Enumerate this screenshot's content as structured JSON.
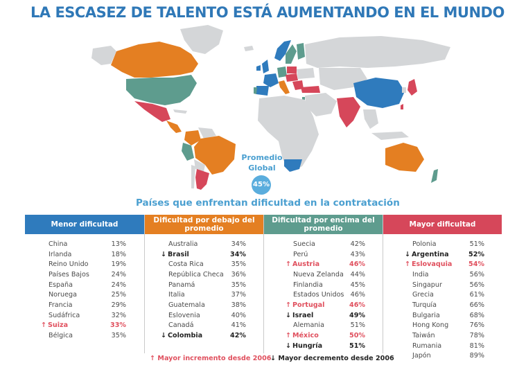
{
  "title": "LA ESCASEZ DE TALENTO ESTÁ AUMENTANDO EN EL MUNDO",
  "promedio": {
    "label_line1": "Promedio",
    "label_line2": "Global",
    "value": "45%"
  },
  "subtitle": "Países que enfrentan dificultad en la contratación",
  "colors": {
    "title": "#2f78b7",
    "menor": "#2f7bbd",
    "debajo": "#e47f22",
    "encima": "#5e9c8e",
    "mayor": "#d6475a",
    "no_data": "#d4d6d8",
    "up_text": "#e0505e"
  },
  "columns": [
    {
      "header": "Menor dificultad",
      "color": "#2f7bbd",
      "rows": [
        {
          "name": "China",
          "pct": "13%",
          "trend": ""
        },
        {
          "name": "Irlanda",
          "pct": "18%",
          "trend": ""
        },
        {
          "name": "Reino Unido",
          "pct": "19%",
          "trend": ""
        },
        {
          "name": "Países Bajos",
          "pct": "24%",
          "trend": ""
        },
        {
          "name": "España",
          "pct": "24%",
          "trend": ""
        },
        {
          "name": "Noruega",
          "pct": "25%",
          "trend": ""
        },
        {
          "name": "Francia",
          "pct": "29%",
          "trend": ""
        },
        {
          "name": "Sudáfrica",
          "pct": "32%",
          "trend": ""
        },
        {
          "name": "Suiza",
          "pct": "33%",
          "trend": "up"
        },
        {
          "name": "Bélgica",
          "pct": "35%",
          "trend": ""
        }
      ]
    },
    {
      "header": "Dificultad por debajo del promedio",
      "color": "#e47f22",
      "rows": [
        {
          "name": "Australia",
          "pct": "34%",
          "trend": ""
        },
        {
          "name": "Brasil",
          "pct": "34%",
          "trend": "down"
        },
        {
          "name": "Costa Rica",
          "pct": "35%",
          "trend": ""
        },
        {
          "name": "República Checa",
          "pct": "36%",
          "trend": ""
        },
        {
          "name": "Panamá",
          "pct": "35%",
          "trend": ""
        },
        {
          "name": "Italia",
          "pct": "37%",
          "trend": ""
        },
        {
          "name": "Guatemala",
          "pct": "38%",
          "trend": ""
        },
        {
          "name": "Eslovenia",
          "pct": "40%",
          "trend": ""
        },
        {
          "name": "Canadá",
          "pct": "41%",
          "trend": ""
        },
        {
          "name": "Colombia",
          "pct": "42%",
          "trend": "down"
        }
      ]
    },
    {
      "header": "Dificultad por encima del promedio",
      "color": "#5e9c8e",
      "rows": [
        {
          "name": "Suecia",
          "pct": "42%",
          "trend": ""
        },
        {
          "name": "Perú",
          "pct": "43%",
          "trend": ""
        },
        {
          "name": "Austria",
          "pct": "46%",
          "trend": "up"
        },
        {
          "name": "Nueva Zelanda",
          "pct": "44%",
          "trend": ""
        },
        {
          "name": "Finlandia",
          "pct": "45%",
          "trend": ""
        },
        {
          "name": "Estados Unidos",
          "pct": "46%",
          "trend": ""
        },
        {
          "name": "Portugal",
          "pct": "46%",
          "trend": "up"
        },
        {
          "name": "Israel",
          "pct": "49%",
          "trend": "down"
        },
        {
          "name": "Alemania",
          "pct": "51%",
          "trend": ""
        },
        {
          "name": "México",
          "pct": "50%",
          "trend": "up"
        },
        {
          "name": "Hungría",
          "pct": "51%",
          "trend": "down"
        }
      ]
    },
    {
      "header": "Mayor dificultad",
      "color": "#d6475a",
      "rows": [
        {
          "name": "Polonia",
          "pct": "51%",
          "trend": ""
        },
        {
          "name": "Argentina",
          "pct": "52%",
          "trend": "down"
        },
        {
          "name": "Eslovaquia",
          "pct": "54%",
          "trend": "up"
        },
        {
          "name": "India",
          "pct": "56%",
          "trend": ""
        },
        {
          "name": "Singapur",
          "pct": "56%",
          "trend": ""
        },
        {
          "name": "Grecia",
          "pct": "61%",
          "trend": ""
        },
        {
          "name": "Turquía",
          "pct": "66%",
          "trend": ""
        },
        {
          "name": "Bulgaria",
          "pct": "68%",
          "trend": ""
        },
        {
          "name": "Hong Kong",
          "pct": "76%",
          "trend": ""
        },
        {
          "name": "Taiwán",
          "pct": "78%",
          "trend": ""
        },
        {
          "name": "Rumania",
          "pct": "81%",
          "trend": ""
        },
        {
          "name": "Japón",
          "pct": "89%",
          "trend": ""
        }
      ]
    }
  ],
  "legend": {
    "up_arrow": "↑",
    "up_label": "Mayor incremento desde 2006",
    "down_arrow": "↓",
    "down_label": "Mayor decremento desde 2006"
  }
}
